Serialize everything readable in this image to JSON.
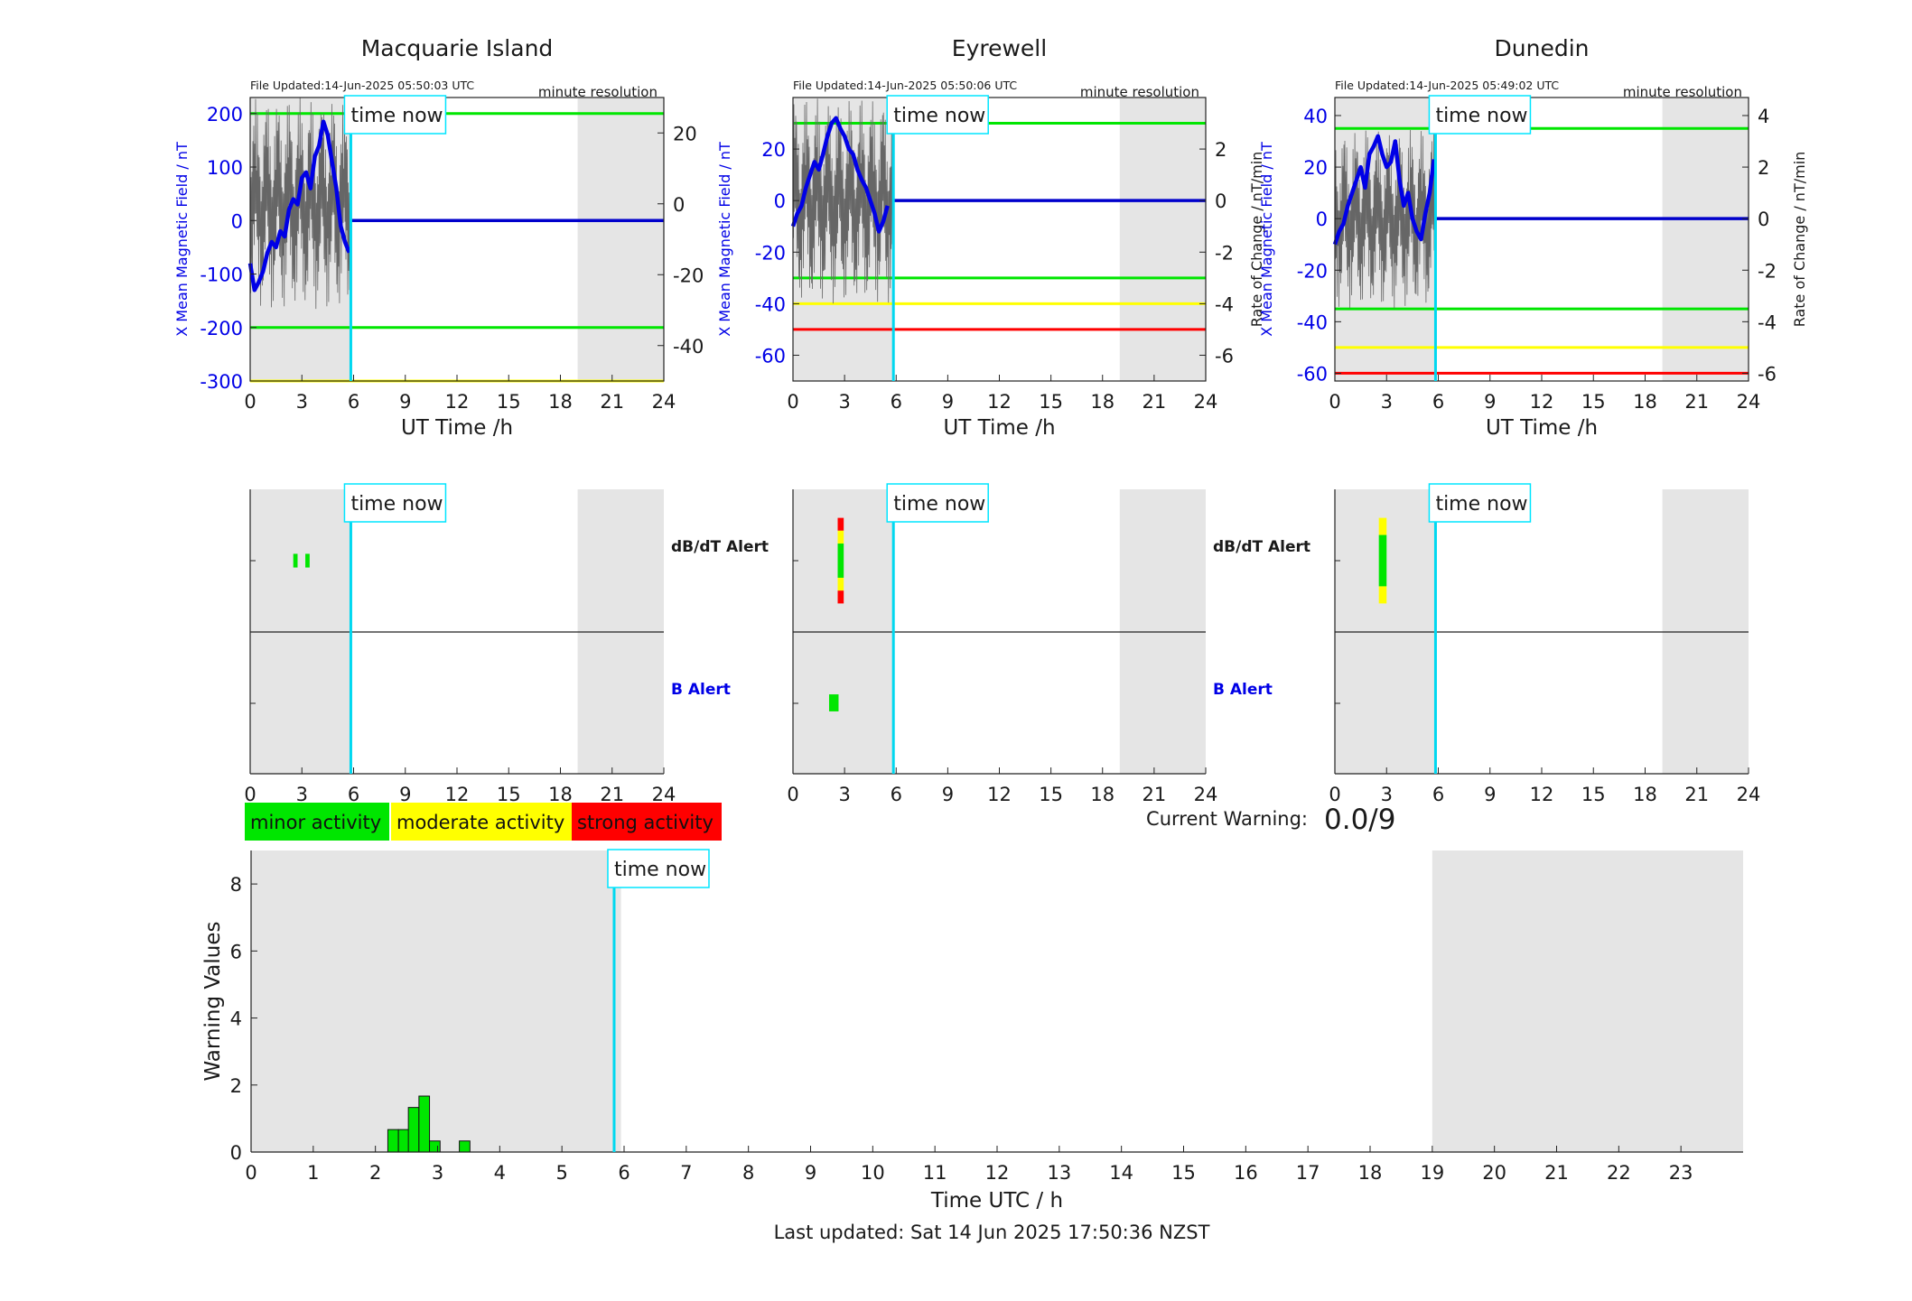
{
  "time_now_label": "time now",
  "time_now_hour": 5.84,
  "night_band": {
    "start_h": 19,
    "end_h": 24,
    "early_end_h": 5.95
  },
  "panels": [
    {
      "title": "Macquarie Island",
      "file_updated": "File Updated:14-Jun-2025 05:50:03 UTC",
      "resolution": "minute resolution",
      "ylabel_left": "X Mean Magnetic Field / nT",
      "ylabel_right": "",
      "xlabel": "UT Time /h",
      "ylim": [
        -300,
        230
      ],
      "yticks": [
        -300,
        -200,
        -100,
        0,
        100,
        200
      ],
      "ylim_right": [
        -50,
        30
      ],
      "yticks_right": [
        -40,
        -20,
        0,
        20
      ],
      "thresholds": [
        {
          "value": 200,
          "color": "#00e600"
        },
        {
          "value": -200,
          "color": "#00e600"
        },
        {
          "value": -300,
          "color": "#ffff00"
        }
      ],
      "field_x": [
        0,
        0.25,
        0.5,
        0.75,
        1,
        1.25,
        1.5,
        1.75,
        2,
        2.25,
        2.5,
        2.75,
        3,
        3.25,
        3.5,
        3.75,
        4,
        4.25,
        4.5,
        4.75,
        5,
        5.25,
        5.5,
        5.75
      ],
      "field_y": [
        -80,
        -130,
        -115,
        -95,
        -60,
        -40,
        -50,
        -20,
        -30,
        20,
        40,
        30,
        80,
        90,
        60,
        120,
        140,
        185,
        160,
        110,
        60,
        -10,
        -40,
        -60
      ],
      "rate_amplitude": 30,
      "dbdt_alert": [
        {
          "start_h": 2.5,
          "end_h": 2.75,
          "bands": [
            {
              "lo": 0.42,
              "hi": 0.58,
              "color": "#00e600"
            }
          ]
        },
        {
          "start_h": 3.2,
          "end_h": 3.45,
          "bands": [
            {
              "lo": 0.42,
              "hi": 0.58,
              "color": "#00e600"
            }
          ]
        }
      ],
      "b_alert": []
    },
    {
      "title": "Eyrewell",
      "file_updated": "File Updated:14-Jun-2025 05:50:06 UTC",
      "resolution": "minute resolution",
      "ylabel_left": "X Mean Magnetic Field / nT",
      "ylabel_right": "Rate of Change / nT/min",
      "xlabel": "UT Time /h",
      "ylim": [
        -70,
        40
      ],
      "yticks": [
        -60,
        -40,
        -20,
        0,
        20
      ],
      "ylim_right": [
        -7,
        4
      ],
      "yticks_right": [
        -6,
        -4,
        -2,
        0,
        2
      ],
      "thresholds": [
        {
          "value": 30,
          "color": "#00e600"
        },
        {
          "value": -30,
          "color": "#00e600"
        },
        {
          "value": -40,
          "color": "#ffff00"
        },
        {
          "value": -50,
          "color": "#ff0000"
        }
      ],
      "field_x": [
        0,
        0.25,
        0.5,
        0.75,
        1,
        1.25,
        1.5,
        1.75,
        2,
        2.25,
        2.5,
        2.75,
        3,
        3.25,
        3.5,
        3.75,
        4,
        4.25,
        4.5,
        4.75,
        5,
        5.25,
        5.5
      ],
      "field_y": [
        -10,
        -5,
        -2,
        5,
        10,
        15,
        12,
        18,
        25,
        30,
        32,
        28,
        25,
        20,
        18,
        12,
        8,
        5,
        0,
        -5,
        -12,
        -8,
        -2
      ],
      "rate_amplitude": 4,
      "dbdt_alert": [
        {
          "start_h": 2.6,
          "end_h": 2.95,
          "bands": [
            {
              "lo": 0.0,
              "hi": 0.15,
              "color": "#ff0000"
            },
            {
              "lo": 0.15,
              "hi": 0.3,
              "color": "#ffff00"
            },
            {
              "lo": 0.3,
              "hi": 0.7,
              "color": "#00e600"
            },
            {
              "lo": 0.7,
              "hi": 0.85,
              "color": "#ffff00"
            },
            {
              "lo": 0.85,
              "hi": 1.0,
              "color": "#ff0000"
            }
          ]
        }
      ],
      "b_alert": [
        {
          "start_h": 2.1,
          "end_h": 2.65,
          "bands": [
            {
              "lo": 0.4,
              "hi": 0.6,
              "color": "#00e600"
            }
          ]
        }
      ]
    },
    {
      "title": "Dunedin",
      "file_updated": "File Updated:14-Jun-2025 05:49:02 UTC",
      "resolution": "minute resolution",
      "ylabel_left": "X Mean Magnetic Field / nT",
      "ylabel_right": "Rate of Change / nT/min",
      "xlabel": "UT Time /h",
      "ylim": [
        -63,
        47
      ],
      "yticks": [
        -60,
        -40,
        -20,
        0,
        20,
        40
      ],
      "ylim_right": [
        -6.3,
        4.7
      ],
      "yticks_right": [
        -6,
        -4,
        -2,
        0,
        2,
        4
      ],
      "thresholds": [
        {
          "value": 35,
          "color": "#00e600"
        },
        {
          "value": -35,
          "color": "#00e600"
        },
        {
          "value": -50,
          "color": "#ffff00"
        },
        {
          "value": -60,
          "color": "#ff0000"
        }
      ],
      "field_x": [
        0,
        0.25,
        0.5,
        0.75,
        1,
        1.25,
        1.5,
        1.75,
        2,
        2.25,
        2.5,
        2.75,
        3,
        3.25,
        3.5,
        3.75,
        4,
        4.25,
        4.5,
        4.75,
        5,
        5.25,
        5.5,
        5.75
      ],
      "field_y": [
        -10,
        -5,
        -2,
        5,
        10,
        15,
        20,
        12,
        25,
        28,
        32,
        25,
        20,
        22,
        30,
        15,
        5,
        10,
        0,
        -5,
        -8,
        2,
        10,
        23
      ],
      "rate_amplitude": 3.5,
      "dbdt_alert": [
        {
          "start_h": 2.55,
          "end_h": 3.0,
          "bands": [
            {
              "lo": 0.0,
              "hi": 0.2,
              "color": "#ffff00"
            },
            {
              "lo": 0.2,
              "hi": 0.8,
              "color": "#00e600"
            },
            {
              "lo": 0.8,
              "hi": 1.0,
              "color": "#ffff00"
            }
          ]
        }
      ],
      "b_alert": []
    }
  ],
  "alerts": {
    "dbdt_label": "dB/dT Alert",
    "b_label": "B Alert",
    "xticks": [
      0,
      3,
      6,
      9,
      12,
      15,
      18,
      21,
      24
    ]
  },
  "legend": [
    {
      "label": "minor activity",
      "color": "#00e600"
    },
    {
      "label": "moderate activity",
      "color": "#ffff00"
    },
    {
      "label": "strong activity",
      "color": "#ff0000"
    }
  ],
  "current_warning": {
    "label": "Current Warning:",
    "value": "0.0/9"
  },
  "chart_data": [
    {
      "type": "line",
      "title": "Macquarie Island",
      "xlabel": "UT Time /h",
      "ylabel": "X Mean Magnetic Field / nT",
      "xlim": [
        0,
        24
      ],
      "ylim": [
        -300,
        230
      ]
    },
    {
      "type": "line",
      "title": "Eyrewell",
      "xlabel": "UT Time /h",
      "ylabel": "X Mean Magnetic Field / nT",
      "xlim": [
        0,
        24
      ],
      "ylim": [
        -70,
        40
      ]
    },
    {
      "type": "line",
      "title": "Dunedin",
      "xlabel": "UT Time /h",
      "ylabel": "X Mean Magnetic Field / nT",
      "xlim": [
        0,
        24
      ],
      "ylim": [
        -63,
        47
      ]
    },
    {
      "type": "bar",
      "title": "",
      "xlabel": "Time UTC / h",
      "ylabel": "Warning Values",
      "xlim": [
        0,
        24
      ],
      "ylim": [
        0,
        9
      ],
      "yticks": [
        0,
        2,
        4,
        6,
        8
      ],
      "xticks": [
        0,
        1,
        2,
        3,
        4,
        5,
        6,
        7,
        8,
        9,
        10,
        11,
        12,
        13,
        14,
        15,
        16,
        17,
        18,
        19,
        20,
        21,
        22,
        23
      ],
      "bars": [
        {
          "x": 2.2,
          "width": 0.17,
          "value": 0.67
        },
        {
          "x": 2.37,
          "width": 0.17,
          "value": 0.67
        },
        {
          "x": 2.53,
          "width": 0.17,
          "value": 1.33
        },
        {
          "x": 2.7,
          "width": 0.17,
          "value": 1.67
        },
        {
          "x": 2.87,
          "width": 0.17,
          "value": 0.33
        },
        {
          "x": 3.35,
          "width": 0.17,
          "value": 0.33
        }
      ],
      "bar_color": "#00e600"
    }
  ],
  "last_updated": "Last updated: Sat 14 Jun 2025 17:50:36 NZST"
}
